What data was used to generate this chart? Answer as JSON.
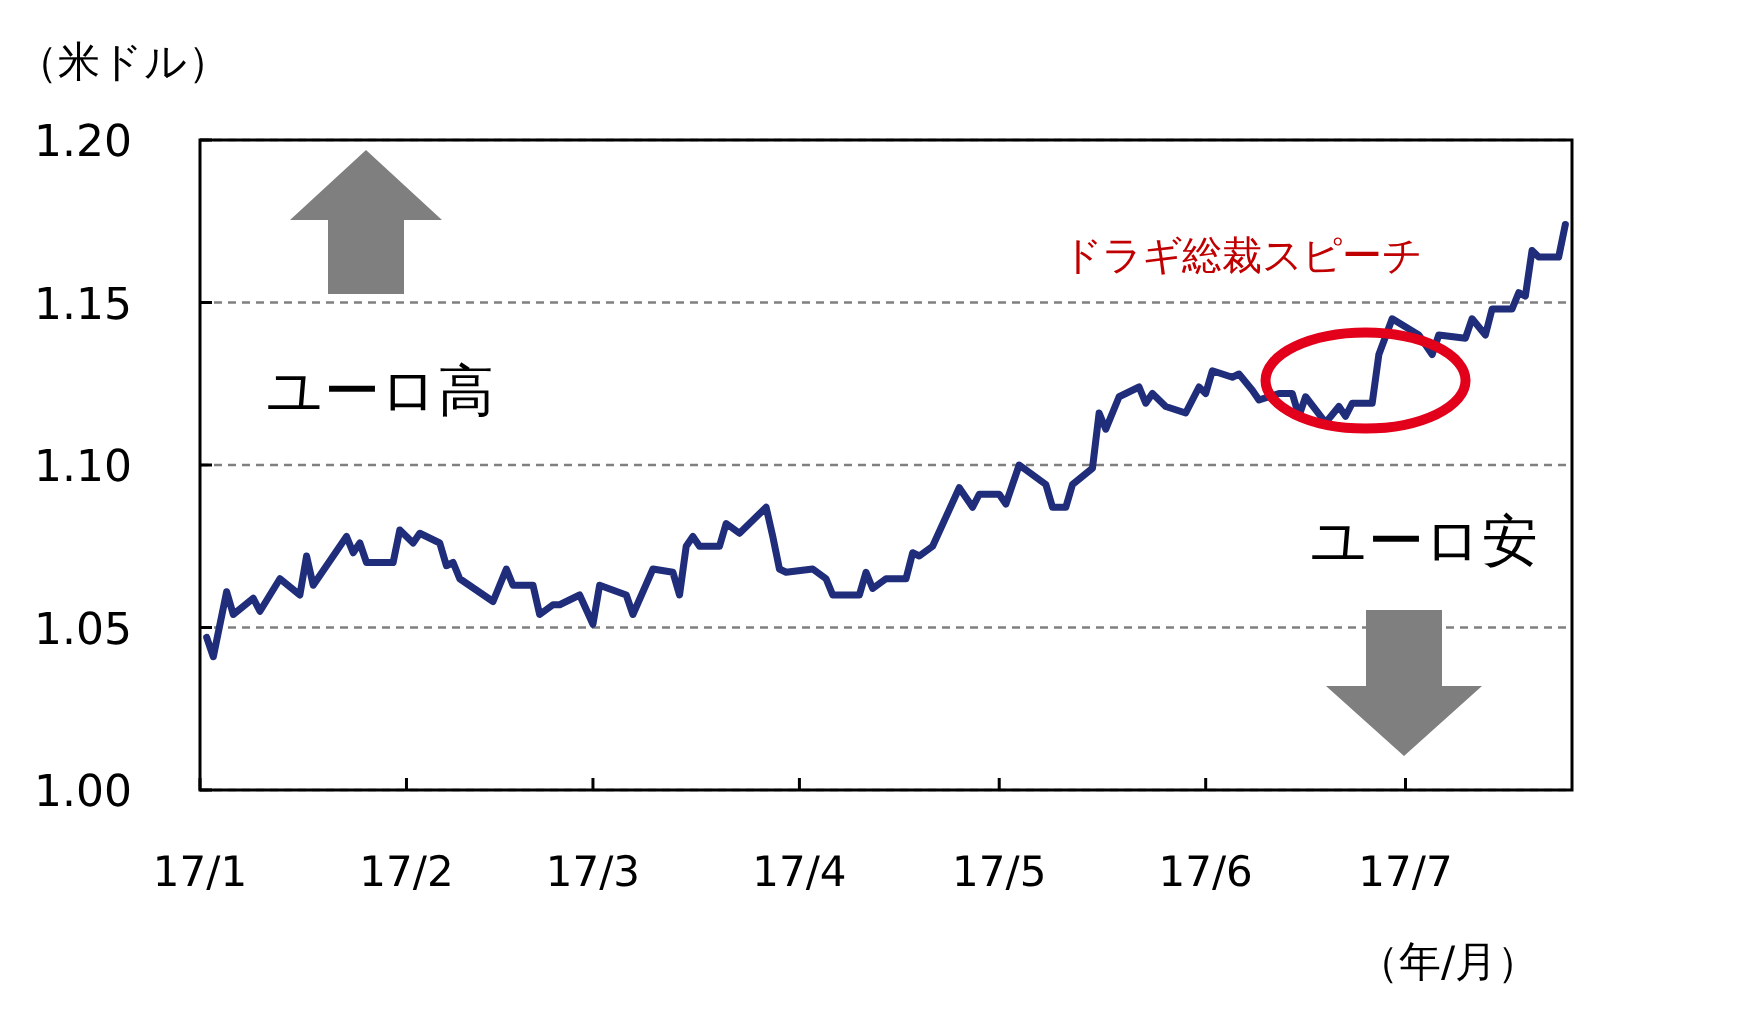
{
  "chart_data": {
    "type": "line",
    "ylabel": "（米ドル）",
    "xlabel": "（年/月）",
    "xlim": [
      "--01-01",
      "--07-26"
    ],
    "ylim": [
      1.0,
      1.2
    ],
    "yticks": [
      {
        "value": 1.0,
        "label": "1.00"
      },
      1.05,
      {
        "value": 1.1,
        "label": "1.10"
      },
      1.15,
      {
        "value": 1.2,
        "label": "1.20"
      }
    ],
    "xticks": [
      {
        "value": "--01-01",
        "label": "17/1"
      },
      {
        "value": "--02-01",
        "label": "17/2"
      },
      {
        "value": "--03-01",
        "label": "17/3"
      },
      {
        "value": "--04-01",
        "label": "17/4"
      },
      {
        "value": "--05-01",
        "label": "17/5"
      },
      {
        "value": "--06-01",
        "label": "17/6"
      },
      {
        "value": "--07-01",
        "label": "17/7"
      }
    ],
    "grid": "y",
    "line_style": "dashed",
    "marker": "none",
    "annotations": [
      {
        "text": "ドラギ総裁スピーチ",
        "x": "--06-25",
        "y": 1.126
      },
      "ユーロ高",
      "ユーロ安"
    ],
    "series": [
      {
        "color": "#1f2d7a",
        "line_style": "solid",
        "x": [
          "--01-02",
          "--01-03",
          "--01-05",
          "--01-06",
          "--01-09",
          "--01-10",
          "--01-13",
          "--01-16",
          "--01-17",
          "--01-18",
          "--01-23",
          "--01-24",
          "--01-25",
          "--01-26",
          "--01-30",
          "--01-31",
          "--02-02",
          "--02-03",
          "--02-06",
          "--02-07",
          "--02-08",
          "--02-09",
          "--02-14",
          "--02-16",
          "--02-17",
          "--02-20",
          "--02-21",
          "--02-23",
          "--02-24",
          "--02-27",
          "--03-01",
          "--03-02",
          "--03-06",
          "--03-07",
          "--03-10",
          "--03-13",
          "--03-14",
          "--03-15",
          "--03-16",
          "--03-17",
          "--03-20",
          "--03-21",
          "--03-23",
          "--03-27",
          "--03-28",
          "--03-29",
          "--03-30",
          "--04-03",
          "--04-05",
          "--04-06",
          "--04-10",
          "--04-11",
          "--04-12",
          "--04-14",
          "--04-17",
          "--04-18",
          "--04-19",
          "--04-21",
          "--04-25",
          "--04-27",
          "--04-28",
          "--05-01",
          "--05-02",
          "--05-04",
          "--05-08",
          "--05-09",
          "--05-11",
          "--05-12",
          "--05-15",
          "--05-16",
          "--05-17",
          "--05-19",
          "--05-22",
          "--05-23",
          "--05-24",
          "--05-26",
          "--05-29",
          "--05-31",
          "--06-01",
          "--06-02",
          "--06-05",
          "--06-06",
          "--06-08",
          "--06-09",
          "--06-12",
          "--06-14",
          "--06-15",
          "--06-16",
          "--06-19",
          "--06-21",
          "--06-22",
          "--06-23",
          "--06-26",
          "--06-27",
          "--06-29",
          "--07-03",
          "--07-05",
          "--07-06",
          "--07-10",
          "--07-11",
          "--07-13",
          "--07-14",
          "--07-17",
          "--07-18",
          "--07-19",
          "--07-20",
          "--07-21",
          "--07-24",
          "--07-25"
        ],
        "values": [
          1.047,
          1.041,
          1.061,
          1.054,
          1.059,
          1.055,
          1.065,
          1.06,
          1.072,
          1.063,
          1.078,
          1.073,
          1.076,
          1.07,
          1.07,
          1.08,
          1.076,
          1.079,
          1.076,
          1.069,
          1.07,
          1.065,
          1.058,
          1.068,
          1.063,
          1.063,
          1.054,
          1.057,
          1.057,
          1.06,
          1.051,
          1.063,
          1.06,
          1.054,
          1.068,
          1.067,
          1.06,
          1.075,
          1.078,
          1.075,
          1.075,
          1.082,
          1.079,
          1.087,
          1.078,
          1.068,
          1.067,
          1.068,
          1.065,
          1.06,
          1.06,
          1.067,
          1.062,
          1.065,
          1.065,
          1.073,
          1.072,
          1.075,
          1.093,
          1.087,
          1.091,
          1.091,
          1.088,
          1.1,
          1.094,
          1.087,
          1.087,
          1.094,
          1.099,
          1.116,
          1.111,
          1.121,
          1.124,
          1.119,
          1.122,
          1.118,
          1.116,
          1.124,
          1.122,
          1.129,
          1.127,
          1.128,
          1.123,
          1.12,
          1.122,
          1.122,
          1.115,
          1.121,
          1.113,
          1.118,
          1.115,
          1.119,
          1.119,
          1.134,
          1.145,
          1.14,
          1.134,
          1.14,
          1.139,
          1.145,
          1.14,
          1.148,
          1.148,
          1.153,
          1.152,
          1.166,
          1.164,
          1.164,
          1.174
        ]
      }
    ]
  }
}
